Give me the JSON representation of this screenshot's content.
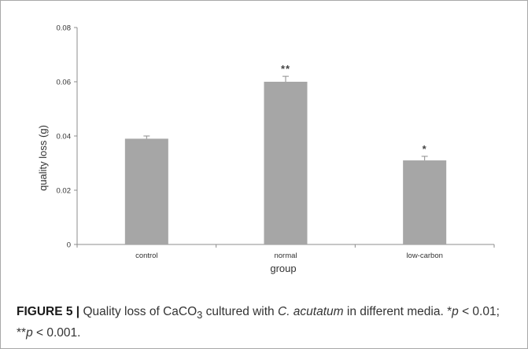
{
  "chart_data": {
    "type": "bar",
    "categories": [
      "control",
      "normal",
      "low-carbon"
    ],
    "values": [
      0.039,
      0.06,
      0.031
    ],
    "errors": [
      0.001,
      0.002,
      0.0015
    ],
    "significance": [
      "",
      "**",
      "*"
    ],
    "xlabel": "group",
    "ylabel": "quality loss (g)",
    "ylim": [
      0,
      0.08
    ],
    "yticks": [
      0,
      0.02,
      0.04,
      0.06,
      0.08
    ],
    "ytick_labels": [
      "0",
      "0.02",
      "0.04",
      "0.06",
      "0.08"
    ],
    "bar_color": "#a6a6a6",
    "grid": false
  },
  "caption": {
    "label": "FIGURE 5 |",
    "t1": " Quality loss of CaCO",
    "sub": "3",
    "t2": " cultured with ",
    "species": "C. acutatum",
    "t3": " in different media. *",
    "p1": "p",
    "t4": " < 0.01; **",
    "p2": "p",
    "t5": " < 0.001."
  }
}
